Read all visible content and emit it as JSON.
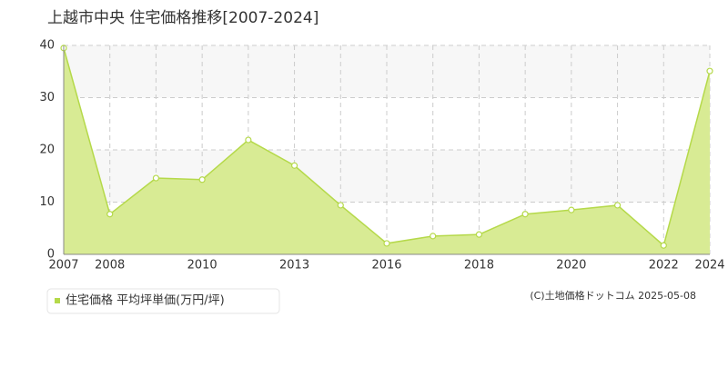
{
  "chart_data": {
    "type": "area",
    "title": "上越市中央 住宅価格推移[2007-2024]",
    "categories": [
      "2007",
      "2008",
      null,
      "2010",
      null,
      "2013",
      null,
      "2016",
      null,
      "2018",
      null,
      "2020",
      null,
      "2022",
      "2024"
    ],
    "series": [
      {
        "name": "住宅価格 平均坪単価(万円/坪)",
        "color": "#b5d94a",
        "fill": "#d8eb94",
        "values": [
          39.5,
          7.7,
          14.6,
          14.3,
          21.9,
          17.0,
          9.4,
          2.1,
          3.5,
          3.8,
          7.7,
          8.5,
          9.4,
          1.7,
          35.1
        ]
      }
    ],
    "ylim": [
      0,
      40
    ],
    "yticks": [
      0,
      10,
      20,
      30,
      40
    ],
    "grid": true,
    "copyright": "(C)土地価格ドットコム 2025-05-08"
  }
}
